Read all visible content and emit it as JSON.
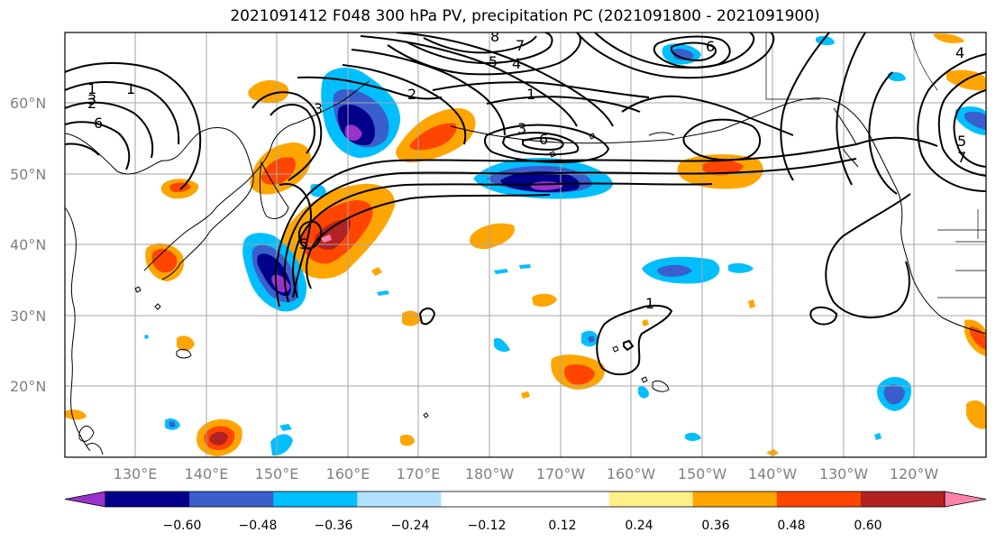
{
  "title": "2021091412 F048 300 hPa PV, precipitation PC (2021091800 - 2021091900)",
  "lat_labels": [
    "60°N",
    "50°N",
    "40°N",
    "30°N",
    "20°N"
  ],
  "lon_labels": [
    "130°E",
    "140°E",
    "150°E",
    "160°E",
    "170°E",
    "180°W",
    "170°W",
    "160°W",
    "150°W",
    "140°W",
    "130°W",
    "120°W"
  ],
  "colorbar": {
    "colors": [
      "#9932cc",
      "#00008b",
      "#3a5fcd",
      "#00bfff",
      "#b0e2ff",
      "#ffffff",
      "#ffffff",
      "#fff08a",
      "#ffa500",
      "#ff4500",
      "#b22222",
      "#ff82ab"
    ],
    "tick_labels": [
      "−0.60",
      "−0.48",
      "−0.36",
      "−0.24",
      "−0.12",
      "0.12",
      "0.24",
      "0.36",
      "0.48",
      "0.60"
    ]
  },
  "contour_labels": [
    "1",
    "2",
    "3",
    "6",
    "7",
    "8",
    "5",
    "4",
    "3",
    "1",
    "5",
    "6",
    "1",
    "3",
    "2",
    "1",
    "6",
    "7",
    "5",
    "4"
  ]
}
